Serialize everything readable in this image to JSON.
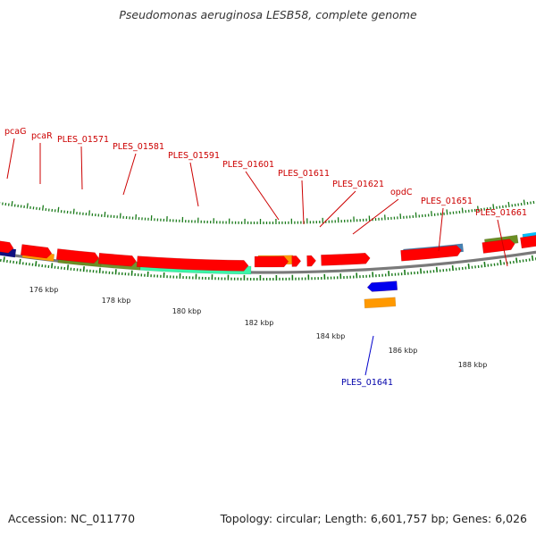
{
  "title": "Pseudomonas aeruginosa LESB58, complete genome",
  "footer": {
    "accession": "Accession: NC_011770",
    "summary": "Topology: circular; Length: 6,601,757 bp; Genes: 6,026"
  },
  "axis_labels": [
    "176 kbp",
    "178 kbp",
    "180 kbp",
    "182 kbp",
    "184 kbp",
    "186 kbp",
    "188 kbp"
  ],
  "gene_labels": [
    "pcaG",
    "pcaR",
    "PLES_01571",
    "PLES_01581",
    "PLES_01591",
    "PLES_01601",
    "PLES_01611",
    "PLES_01621",
    "opdC",
    "PLES_01651",
    "PLES_01661",
    "PLES_01641"
  ],
  "colors": {
    "backbone": "#7a7a7a",
    "cds": "#ff0000",
    "feature_navy": "#101080",
    "feature_orange": "#ff9900",
    "feature_olive": "#6b8e23",
    "feature_aquamarine": "#3cf5a8",
    "feature_steelblue": "#4682b4",
    "feature_blue": "#0000ee",
    "feature_cyan": "#00bfff",
    "ticks": "#1a7a1a",
    "label_red": "#cc0000",
    "label_blue": "#0000aa"
  }
}
